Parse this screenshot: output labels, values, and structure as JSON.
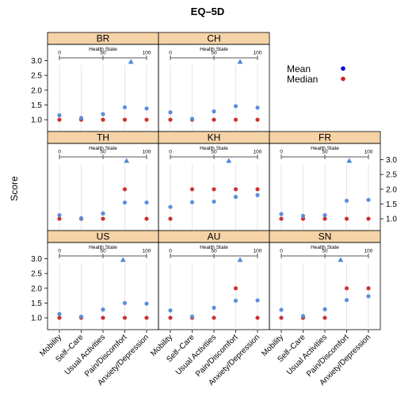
{
  "chart_data": {
    "type": "scatter",
    "title": "EQ–5D",
    "ylabel": "Score",
    "xlabel": "",
    "categories": [
      "Mobility",
      "Self–Care",
      "Usual Activities",
      "Pain/Discomfort",
      "Anxiety/Depression"
    ],
    "ylim": [
      0.6,
      3.55
    ],
    "yticks": [
      1.0,
      1.5,
      2.0,
      2.5,
      3.0
    ],
    "ytick_labels": [
      "1.0",
      "1.5",
      "2.0",
      "2.5",
      "3.0"
    ],
    "legend": {
      "placement": "top-right",
      "entries": [
        {
          "name": "Mean",
          "color": "#0000dd"
        },
        {
          "name": "Median",
          "color": "#cc2222"
        }
      ]
    },
    "health_state_scale": {
      "label": "Health State",
      "min": 0,
      "max": 100,
      "ticks": [
        "0",
        "50",
        "100"
      ]
    },
    "colors": {
      "mean": "#5b8fdc",
      "median": "#d03030",
      "strip": "#f5d3a7",
      "triangle": "#4f86d8"
    },
    "panels": [
      {
        "name": "BR",
        "row": 0,
        "col": 0,
        "mean": [
          1.15,
          1.06,
          1.19,
          1.42,
          1.38
        ],
        "median": [
          1,
          1,
          1,
          1,
          1
        ],
        "health_state": 82
      },
      {
        "name": "CH",
        "row": 0,
        "col": 1,
        "mean": [
          1.25,
          1.03,
          1.28,
          1.46,
          1.41
        ],
        "median": [
          1,
          1,
          1,
          1,
          1
        ],
        "health_state": 80
      },
      {
        "name": "TH",
        "row": 1,
        "col": 0,
        "mean": [
          1.12,
          1.02,
          1.18,
          1.55,
          1.55
        ],
        "median": [
          1,
          1,
          1,
          2,
          1
        ],
        "health_state": 77
      },
      {
        "name": "KH",
        "row": 1,
        "col": 1,
        "mean": [
          1.4,
          1.56,
          1.58,
          1.74,
          1.8
        ],
        "median": [
          1,
          2,
          2,
          2,
          2
        ],
        "health_state": 67
      },
      {
        "name": "FR",
        "row": 1,
        "col": 2,
        "mean": [
          1.16,
          1.1,
          1.12,
          1.61,
          1.64
        ],
        "median": [
          1,
          1,
          1,
          1,
          1
        ],
        "health_state": 78
      },
      {
        "name": "US",
        "row": 2,
        "col": 0,
        "mean": [
          1.13,
          1.04,
          1.28,
          1.5,
          1.48
        ],
        "median": [
          1,
          1,
          1,
          1,
          1
        ],
        "health_state": 73
      },
      {
        "name": "AU",
        "row": 2,
        "col": 1,
        "mean": [
          1.25,
          1.04,
          1.34,
          1.58,
          1.59
        ],
        "median": [
          1,
          1,
          1,
          2,
          1
        ],
        "health_state": 80
      },
      {
        "name": "SN",
        "row": 2,
        "col": 2,
        "mean": [
          1.27,
          1.06,
          1.29,
          1.6,
          1.73
        ],
        "median": [
          1,
          1,
          1,
          2,
          2
        ],
        "health_state": 68
      }
    ]
  }
}
